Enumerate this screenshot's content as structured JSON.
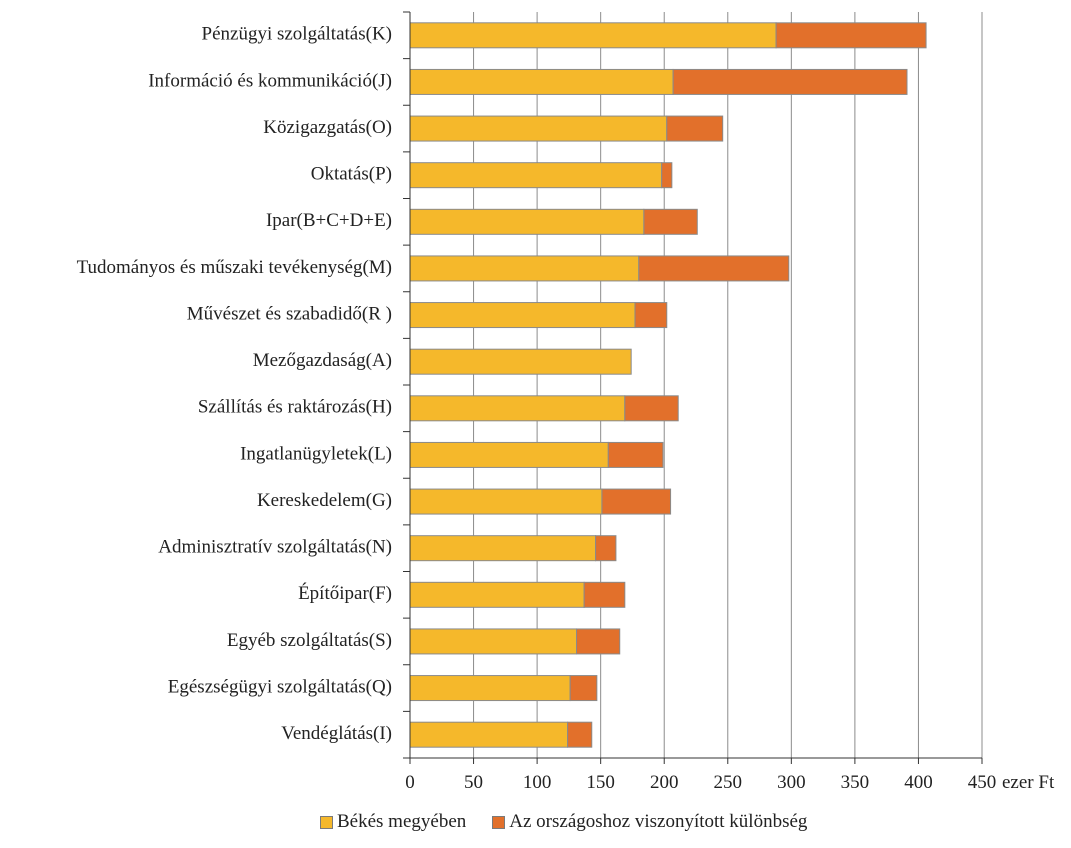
{
  "chart_data": {
    "type": "bar",
    "orientation": "horizontal",
    "stacked": true,
    "categories": [
      "Pénzügyi szolgáltatás(K)",
      "Információ és kommunikáció(J)",
      "Közigazgatás(O)",
      "Oktatás(P)",
      "Ipar(B+C+D+E)",
      "Tudományos és műszaki tevékenység(M)",
      "Művészet és szabadidő(R )",
      "Mezőgazdaság(A)",
      "Szállítás és raktározás(H)",
      "Ingatlanügyletek(L)",
      "Kereskedelem(G)",
      "Adminisztratív szolgáltatás(N)",
      "Építőipar(F)",
      "Egyéb szolgáltatás(S)",
      "Egészségügyi szolgáltatás(Q)",
      "Vendéglátás(I)"
    ],
    "series": [
      {
        "name": "Békés megyében",
        "color": "#F5B82B",
        "values": [
          288,
          207,
          202,
          198,
          184,
          180,
          177,
          174,
          169,
          156,
          151,
          146,
          137,
          131,
          126,
          124
        ]
      },
      {
        "name": "Az országoshoz viszonyított különbség",
        "color": "#E2702B",
        "values": [
          118,
          184,
          44,
          8,
          42,
          118,
          25,
          0,
          42,
          43,
          54,
          16,
          32,
          34,
          21,
          19
        ]
      }
    ],
    "xlim": [
      0,
      450
    ],
    "xticks": [
      0,
      50,
      100,
      150,
      200,
      250,
      300,
      350,
      400,
      450
    ],
    "x_unit": "ezer Ft",
    "grid": "vertical",
    "legend_position": "bottom"
  }
}
